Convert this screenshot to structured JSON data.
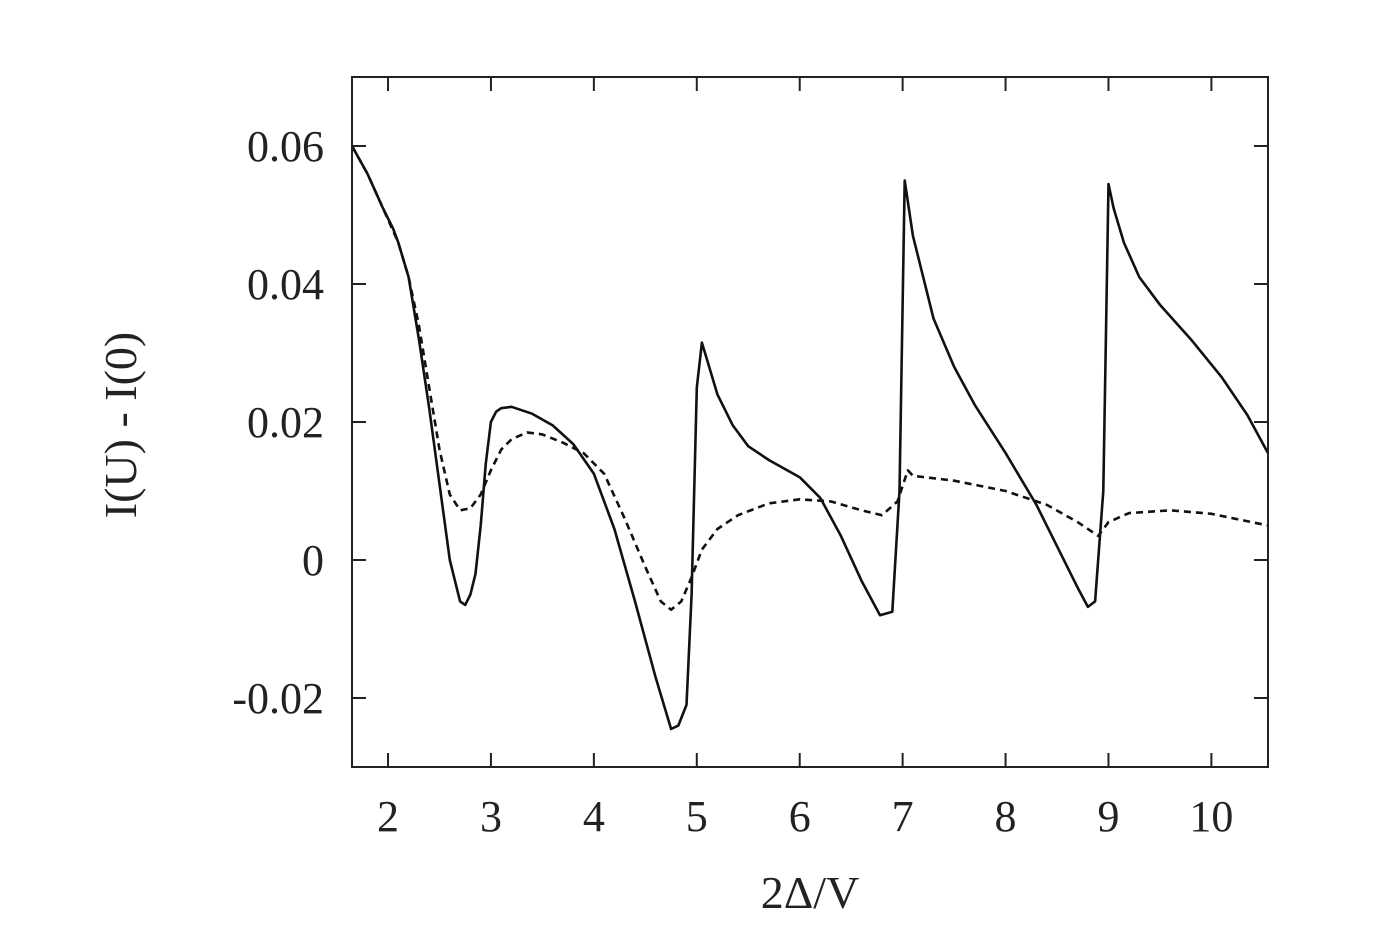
{
  "chart_data": {
    "type": "line",
    "title": "",
    "xlabel": "2Δ/V",
    "ylabel": "I(U) - I(0)",
    "xlim": [
      1.65,
      10.55
    ],
    "ylim": [
      -0.03,
      0.07
    ],
    "x_ticks": [
      2,
      3,
      4,
      5,
      6,
      7,
      8,
      9,
      10
    ],
    "x_tick_labels": [
      "2",
      "3",
      "4",
      "5",
      "6",
      "7",
      "8",
      "9",
      "10"
    ],
    "y_ticks": [
      -0.02,
      0,
      0.02,
      0.04,
      0.06
    ],
    "y_tick_labels": [
      "-0.02",
      "0",
      "0.02",
      "0.04",
      "0.06"
    ],
    "grid": false,
    "legend": "none",
    "series": [
      {
        "style": "solid",
        "color": "#111111",
        "points": [
          [
            1.65,
            0.06
          ],
          [
            1.8,
            0.056
          ],
          [
            1.95,
            0.051
          ],
          [
            2.05,
            0.048
          ],
          [
            2.1,
            0.046
          ],
          [
            2.2,
            0.041
          ],
          [
            2.3,
            0.032
          ],
          [
            2.4,
            0.022
          ],
          [
            2.5,
            0.011
          ],
          [
            2.6,
            0.0
          ],
          [
            2.7,
            -0.006
          ],
          [
            2.75,
            -0.0065
          ],
          [
            2.8,
            -0.005
          ],
          [
            2.85,
            -0.002
          ],
          [
            2.9,
            0.005
          ],
          [
            2.95,
            0.014
          ],
          [
            3.0,
            0.02
          ],
          [
            3.05,
            0.0215
          ],
          [
            3.1,
            0.022
          ],
          [
            3.2,
            0.0222
          ],
          [
            3.4,
            0.0212
          ],
          [
            3.6,
            0.0195
          ],
          [
            3.8,
            0.0168
          ],
          [
            4.0,
            0.0125
          ],
          [
            4.2,
            0.0045
          ],
          [
            4.4,
            -0.006
          ],
          [
            4.6,
            -0.017
          ],
          [
            4.75,
            -0.0245
          ],
          [
            4.82,
            -0.024
          ],
          [
            4.9,
            -0.021
          ],
          [
            4.95,
            -0.005
          ],
          [
            5.0,
            0.025
          ],
          [
            5.05,
            0.0315
          ],
          [
            5.1,
            0.029
          ],
          [
            5.2,
            0.024
          ],
          [
            5.35,
            0.0195
          ],
          [
            5.5,
            0.0165
          ],
          [
            5.7,
            0.0145
          ],
          [
            6.0,
            0.012
          ],
          [
            6.2,
            0.009
          ],
          [
            6.4,
            0.0035
          ],
          [
            6.6,
            -0.003
          ],
          [
            6.78,
            -0.008
          ],
          [
            6.9,
            -0.0075
          ],
          [
            6.97,
            0.01
          ],
          [
            7.02,
            0.055
          ],
          [
            7.1,
            0.047
          ],
          [
            7.2,
            0.041
          ],
          [
            7.3,
            0.035
          ],
          [
            7.5,
            0.028
          ],
          [
            7.7,
            0.0225
          ],
          [
            8.0,
            0.0155
          ],
          [
            8.3,
            0.008
          ],
          [
            8.5,
            0.002
          ],
          [
            8.7,
            -0.004
          ],
          [
            8.8,
            -0.0068
          ],
          [
            8.87,
            -0.006
          ],
          [
            8.95,
            0.01
          ],
          [
            9.0,
            0.0545
          ],
          [
            9.05,
            0.051
          ],
          [
            9.15,
            0.046
          ],
          [
            9.3,
            0.041
          ],
          [
            9.5,
            0.037
          ],
          [
            9.8,
            0.032
          ],
          [
            10.1,
            0.0265
          ],
          [
            10.35,
            0.021
          ],
          [
            10.55,
            0.0155
          ]
        ]
      },
      {
        "style": "dashed",
        "color": "#111111",
        "points": [
          [
            1.65,
            0.06
          ],
          [
            1.8,
            0.056
          ],
          [
            1.95,
            0.051
          ],
          [
            2.1,
            0.046
          ],
          [
            2.2,
            0.041
          ],
          [
            2.3,
            0.034
          ],
          [
            2.4,
            0.025
          ],
          [
            2.5,
            0.016
          ],
          [
            2.6,
            0.0095
          ],
          [
            2.7,
            0.0072
          ],
          [
            2.8,
            0.0075
          ],
          [
            2.9,
            0.0095
          ],
          [
            3.0,
            0.013
          ],
          [
            3.1,
            0.016
          ],
          [
            3.2,
            0.0175
          ],
          [
            3.35,
            0.0185
          ],
          [
            3.5,
            0.0182
          ],
          [
            3.7,
            0.017
          ],
          [
            3.9,
            0.0155
          ],
          [
            4.1,
            0.0125
          ],
          [
            4.3,
            0.006
          ],
          [
            4.5,
            -0.001
          ],
          [
            4.65,
            -0.006
          ],
          [
            4.75,
            -0.0072
          ],
          [
            4.85,
            -0.006
          ],
          [
            4.95,
            -0.0025
          ],
          [
            5.05,
            0.0015
          ],
          [
            5.2,
            0.0045
          ],
          [
            5.4,
            0.0065
          ],
          [
            5.7,
            0.0082
          ],
          [
            6.0,
            0.0088
          ],
          [
            6.3,
            0.0085
          ],
          [
            6.6,
            0.0072
          ],
          [
            6.8,
            0.0065
          ],
          [
            6.95,
            0.0085
          ],
          [
            7.05,
            0.013
          ],
          [
            7.1,
            0.0122
          ],
          [
            7.5,
            0.0115
          ],
          [
            8.0,
            0.01
          ],
          [
            8.4,
            0.008
          ],
          [
            8.7,
            0.0055
          ],
          [
            8.9,
            0.0035
          ],
          [
            9.0,
            0.0055
          ],
          [
            9.2,
            0.0068
          ],
          [
            9.6,
            0.0072
          ],
          [
            10.0,
            0.0067
          ],
          [
            10.55,
            0.005
          ]
        ]
      }
    ]
  }
}
